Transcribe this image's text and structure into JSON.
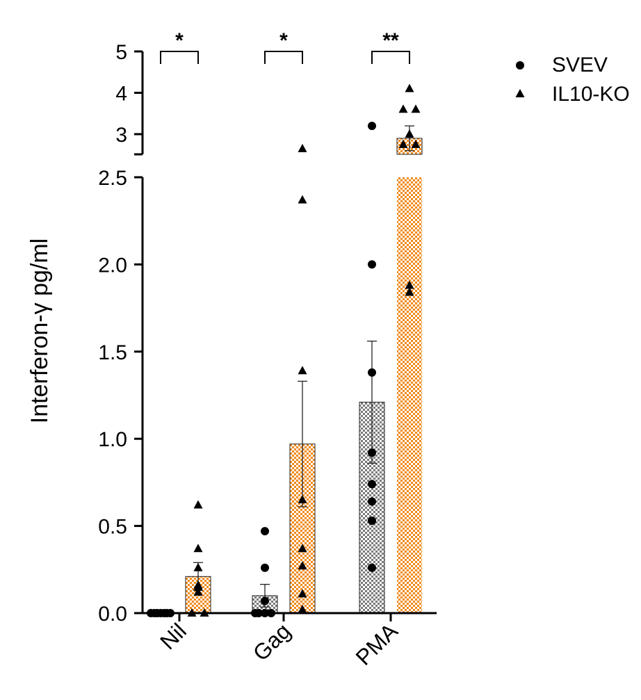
{
  "chart_data": {
    "type": "bar",
    "ylabel": "Interferon-γ pg/ml",
    "categories": [
      "Nil",
      "Gag",
      "PMA"
    ],
    "y_axis": {
      "broken": true,
      "lower_range": [
        0,
        2.5
      ],
      "lower_ticks": [
        "0.0",
        "0.5",
        "1.0",
        "1.5",
        "2.0",
        "2.5"
      ],
      "upper_range": [
        2.5,
        5
      ],
      "upper_ticks": [
        "3",
        "4",
        "5"
      ]
    },
    "series": [
      {
        "name": "SVEV",
        "marker": "circle",
        "color": "#8c8c8c",
        "pattern": "gray-checker",
        "means": [
          0.0,
          0.1,
          1.21
        ],
        "sem": [
          0.0,
          0.065,
          0.35
        ],
        "points": [
          [
            0,
            0,
            0,
            0,
            0,
            0,
            0
          ],
          [
            0.47,
            0.26,
            0.07,
            0,
            0,
            0,
            0
          ],
          [
            3.2,
            2.0,
            1.38,
            0.92,
            0.74,
            0.64,
            0.53,
            0.26
          ]
        ]
      },
      {
        "name": "IL10-KO",
        "marker": "triangle",
        "color": "#f28c1e",
        "pattern": "orange-checker",
        "means": [
          0.21,
          0.97,
          2.9
        ],
        "sem": [
          0.08,
          0.36,
          0.3
        ],
        "points": [
          [
            0.62,
            0.37,
            0.26,
            0.16,
            0.15,
            0.12,
            0,
            0
          ],
          [
            2.65,
            2.37,
            1.39,
            0.65,
            0.37,
            0.27,
            0.11,
            0.02
          ],
          [
            4.1,
            3.6,
            3.6,
            3.0,
            2.75,
            2.75,
            1.88,
            1.84
          ]
        ]
      }
    ],
    "significance": [
      "*",
      "*",
      "**"
    ],
    "legend": {
      "position": "top-right",
      "entries": [
        "SVEV",
        "IL10-KO"
      ]
    }
  }
}
